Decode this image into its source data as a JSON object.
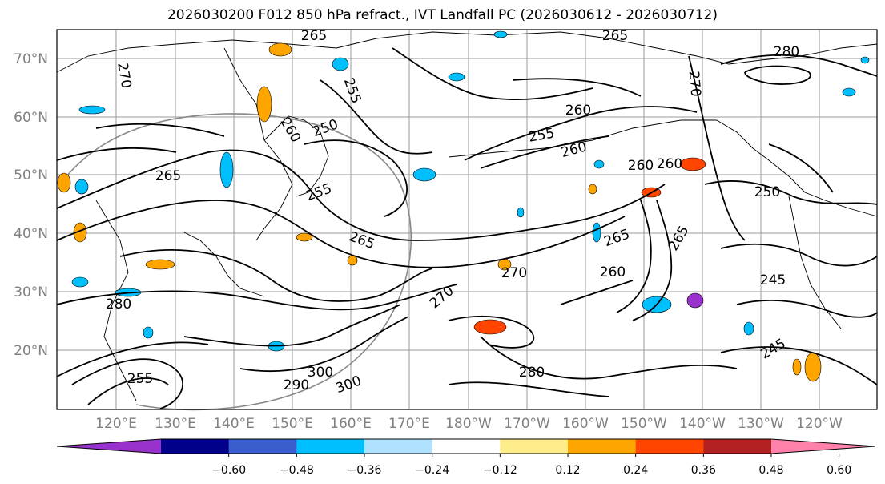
{
  "title": "2026030200 F012 850 hPa refract., IVT Landfall PC (2026030612 - 2026030712)",
  "lat_labels": [
    "70°N",
    "60°N",
    "50°N",
    "40°N",
    "30°N",
    "20°N"
  ],
  "lon_labels": [
    "120°E",
    "130°E",
    "140°E",
    "150°E",
    "160°E",
    "170°E",
    "180°W",
    "170°W",
    "160°W",
    "150°W",
    "140°W",
    "130°W",
    "120°W"
  ],
  "colorbar": {
    "colors": [
      "#9932cc",
      "#00008b",
      "#3a5fcd",
      "#00bfff",
      "#b0e2ff",
      "#ffffff",
      "#ffec8b",
      "#ffa500",
      "#ff4500",
      "#b22222",
      "#ff82ab"
    ],
    "tick_labels": [
      "−0.60",
      "−0.48",
      "−0.36",
      "−0.24",
      "−0.12",
      "0.12",
      "0.24",
      "0.36",
      "0.48",
      "0.60"
    ]
  },
  "contour_labels": [
    {
      "text": "265"
    },
    {
      "text": "265"
    },
    {
      "text": "280"
    },
    {
      "text": "270"
    },
    {
      "text": "255"
    },
    {
      "text": "250"
    },
    {
      "text": "260"
    },
    {
      "text": "260"
    },
    {
      "text": "255"
    },
    {
      "text": "270"
    },
    {
      "text": "260"
    },
    {
      "text": "255"
    },
    {
      "text": "265"
    },
    {
      "text": "260"
    },
    {
      "text": "265"
    },
    {
      "text": "265"
    },
    {
      "text": "265"
    },
    {
      "text": "260"
    },
    {
      "text": "270"
    },
    {
      "text": "270"
    },
    {
      "text": "280"
    },
    {
      "text": "255"
    },
    {
      "text": "300"
    },
    {
      "text": "300"
    },
    {
      "text": "290"
    },
    {
      "text": "245"
    },
    {
      "text": "245"
    },
    {
      "text": "280"
    },
    {
      "text": "260"
    },
    {
      "text": "250"
    }
  ]
}
